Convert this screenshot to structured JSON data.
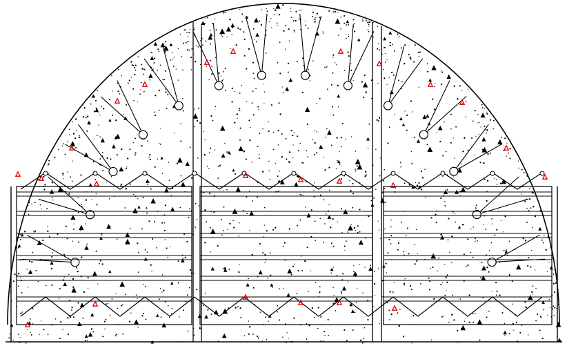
{
  "drawing": {
    "subject": "",
    "colors": {
      "line": "#000000",
      "background": "#ffffff",
      "marker": "#e00000"
    },
    "elements": {
      "arch_lining": "arch-outline",
      "vertical_posts": 3,
      "horizontal_rails": 6,
      "column_bays": 3,
      "anchor_circles_on_arch": 14,
      "red_markers": 24
    }
  }
}
